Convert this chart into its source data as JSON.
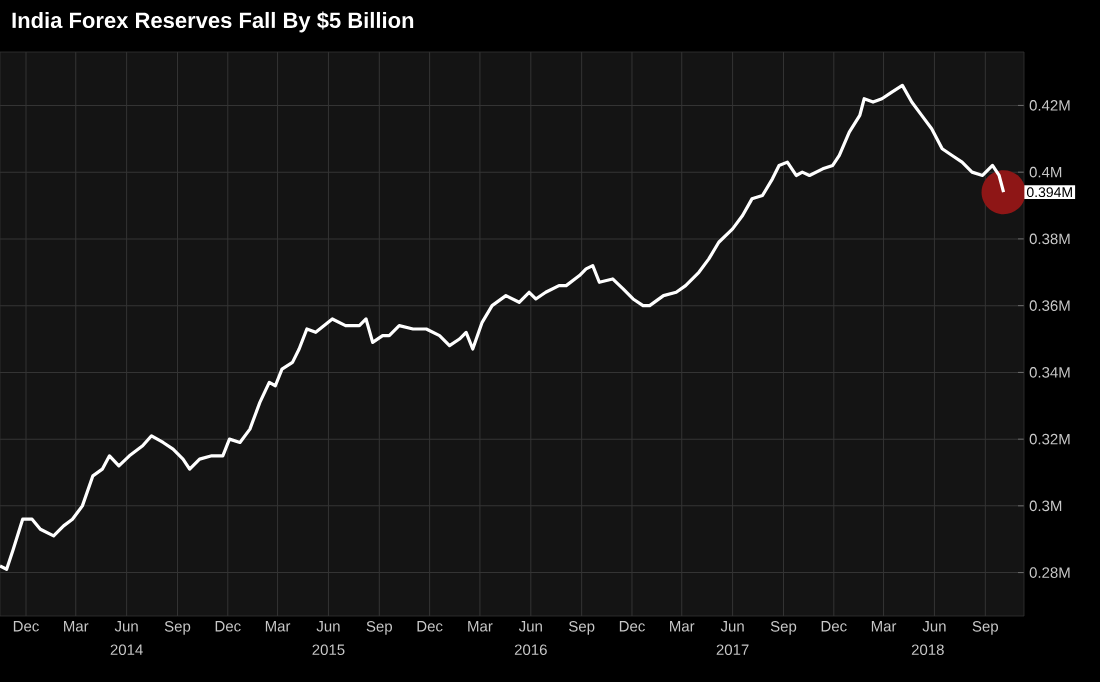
{
  "chart_data": {
    "type": "line",
    "title": "India Forex Reserves Fall By $5 Billion",
    "x": [
      "2013-10-15",
      "2013-10-27",
      "2013-11-08",
      "2013-11-25",
      "2013-12-12",
      "2013-12-27",
      "2014-01-20",
      "2014-02-07",
      "2014-02-23",
      "2014-03-13",
      "2014-04-01",
      "2014-04-18",
      "2014-05-01",
      "2014-05-18",
      "2014-06-06",
      "2014-06-30",
      "2014-07-16",
      "2014-08-06",
      "2014-08-24",
      "2014-09-11",
      "2014-09-23",
      "2014-10-11",
      "2014-11-02",
      "2014-11-22",
      "2014-12-04",
      "2014-12-23",
      "2015-01-10",
      "2015-01-28",
      "2015-02-14",
      "2015-02-25",
      "2015-03-09",
      "2015-03-28",
      "2015-04-09",
      "2015-04-23",
      "2015-05-09",
      "2015-06-08",
      "2015-07-02",
      "2015-07-27",
      "2015-08-08",
      "2015-08-20",
      "2015-09-07",
      "2015-09-19",
      "2015-10-07",
      "2015-11-01",
      "2015-11-25",
      "2015-12-19",
      "2016-01-06",
      "2016-01-24",
      "2016-02-05",
      "2016-02-17",
      "2016-03-05",
      "2016-03-23",
      "2016-04-17",
      "2016-05-11",
      "2016-05-29",
      "2016-06-10",
      "2016-06-28",
      "2016-07-22",
      "2016-08-04",
      "2016-08-28",
      "2016-09-09",
      "2016-09-21",
      "2016-10-03",
      "2016-10-27",
      "2016-11-15",
      "2016-12-03",
      "2016-12-21",
      "2017-01-02",
      "2017-01-27",
      "2017-02-19",
      "2017-03-08",
      "2017-04-01",
      "2017-04-19",
      "2017-05-07",
      "2017-06-01",
      "2017-06-19",
      "2017-07-06",
      "2017-07-25",
      "2017-08-12",
      "2017-08-24",
      "2017-09-08",
      "2017-09-24",
      "2017-10-05",
      "2017-10-18",
      "2017-11-11",
      "2017-11-29",
      "2017-12-11",
      "2017-12-29",
      "2018-01-17",
      "2018-01-25",
      "2018-02-10",
      "2018-02-26",
      "2018-03-16",
      "2018-04-04",
      "2018-04-21",
      "2018-05-09",
      "2018-05-27",
      "2018-06-15",
      "2018-07-03",
      "2018-07-21",
      "2018-08-08",
      "2018-08-27",
      "2018-09-14",
      "2018-09-26",
      "2018-10-04"
    ],
    "series": [
      {
        "color": "#ffffff",
        "values": [
          0.282,
          0.281,
          0.287,
          0.296,
          0.296,
          0.293,
          0.291,
          0.294,
          0.296,
          0.3,
          0.309,
          0.311,
          0.315,
          0.312,
          0.315,
          0.318,
          0.321,
          0.319,
          0.317,
          0.314,
          0.311,
          0.314,
          0.315,
          0.315,
          0.32,
          0.319,
          0.323,
          0.331,
          0.337,
          0.336,
          0.341,
          0.343,
          0.347,
          0.353,
          0.352,
          0.356,
          0.354,
          0.354,
          0.356,
          0.349,
          0.351,
          0.351,
          0.354,
          0.353,
          0.353,
          0.351,
          0.348,
          0.35,
          0.352,
          0.347,
          0.355,
          0.36,
          0.363,
          0.361,
          0.364,
          0.362,
          0.364,
          0.366,
          0.366,
          0.369,
          0.371,
          0.372,
          0.367,
          0.368,
          0.365,
          0.362,
          0.36,
          0.36,
          0.363,
          0.364,
          0.366,
          0.37,
          0.374,
          0.379,
          0.383,
          0.387,
          0.392,
          0.393,
          0.398,
          0.402,
          0.403,
          0.399,
          0.4,
          0.399,
          0.401,
          0.402,
          0.405,
          0.412,
          0.417,
          0.422,
          0.421,
          0.422,
          0.424,
          0.426,
          0.421,
          0.417,
          0.413,
          0.407,
          0.405,
          0.403,
          0.4,
          0.399,
          0.402,
          0.399,
          0.394
        ]
      }
    ],
    "xlim": [
      "2013-10-15",
      "2018-11-10"
    ],
    "xticks": [
      {
        "value": "2013-12-01",
        "label": "Dec"
      },
      {
        "value": "2014-03-01",
        "label": "Mar"
      },
      {
        "value": "2014-06-01",
        "label": "Jun"
      },
      {
        "value": "2014-09-01",
        "label": "Sep"
      },
      {
        "value": "2014-12-01",
        "label": "Dec"
      },
      {
        "value": "2015-03-01",
        "label": "Mar"
      },
      {
        "value": "2015-06-01",
        "label": "Jun"
      },
      {
        "value": "2015-09-01",
        "label": "Sep"
      },
      {
        "value": "2015-12-01",
        "label": "Dec"
      },
      {
        "value": "2016-03-01",
        "label": "Mar"
      },
      {
        "value": "2016-06-01",
        "label": "Jun"
      },
      {
        "value": "2016-09-01",
        "label": "Sep"
      },
      {
        "value": "2016-12-01",
        "label": "Dec"
      },
      {
        "value": "2017-03-01",
        "label": "Mar"
      },
      {
        "value": "2017-06-01",
        "label": "Jun"
      },
      {
        "value": "2017-09-01",
        "label": "Sep"
      },
      {
        "value": "2017-12-01",
        "label": "Dec"
      },
      {
        "value": "2018-03-01",
        "label": "Mar"
      },
      {
        "value": "2018-06-01",
        "label": "Jun"
      },
      {
        "value": "2018-09-01",
        "label": "Sep"
      }
    ],
    "x2lim": [
      "2013-10-15",
      "2018-11-10"
    ],
    "x2ticks": [
      {
        "value": "2014-06-01",
        "label": "2014"
      },
      {
        "value": "2015-06-01",
        "label": "2015"
      },
      {
        "value": "2016-06-01",
        "label": "2016"
      },
      {
        "value": "2017-06-01",
        "label": "2017"
      },
      {
        "value": "2018-05-20",
        "label": "2018"
      }
    ],
    "ylim": [
      0.267,
      0.436
    ],
    "yticks": [
      {
        "value": 0.28,
        "label": "0.28M"
      },
      {
        "value": 0.3,
        "label": "0.3M"
      },
      {
        "value": 0.32,
        "label": "0.32M"
      },
      {
        "value": 0.34,
        "label": "0.34M"
      },
      {
        "value": 0.36,
        "label": "0.36M"
      },
      {
        "value": 0.38,
        "label": "0.38M"
      },
      {
        "value": 0.4,
        "label": "0.4M"
      },
      {
        "value": 0.42,
        "label": "0.42M"
      }
    ],
    "grid": true,
    "annotations": [
      {
        "text": "0.394M",
        "x": "2018-10-04",
        "y": 0.394
      }
    ]
  }
}
